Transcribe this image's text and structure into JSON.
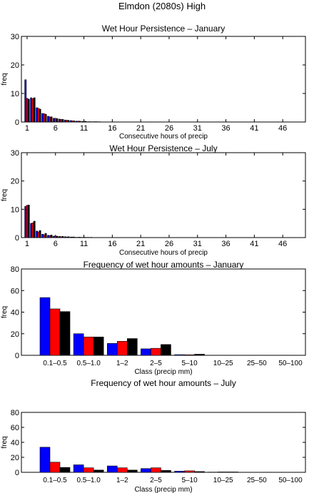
{
  "suptitle": "Elmdon (2080s) High",
  "colors": {
    "blue": "#0000ff",
    "red": "#ff0000",
    "black": "#000000"
  },
  "chart_data": [
    {
      "type": "bar",
      "title": "Wet Hour Persistence – January",
      "xlabel": "Consecutive hours of precip",
      "ylabel": "freq",
      "ylim": [
        0,
        30
      ],
      "yticks": [
        0,
        10,
        20,
        30
      ],
      "xticks": [
        1,
        6,
        11,
        16,
        21,
        26,
        31,
        36,
        41,
        46
      ],
      "xlim": [
        0,
        50
      ],
      "x": [
        1,
        2,
        3,
        4,
        5,
        6,
        7,
        8,
        9,
        10,
        11,
        12,
        13,
        14
      ],
      "series": [
        {
          "color": "#0000ff",
          "values": [
            14.8,
            8.5,
            5.0,
            3.0,
            2.0,
            1.3,
            1.0,
            0.7,
            0.5,
            0.3,
            0.2,
            0.1,
            0.1,
            0.1
          ]
        },
        {
          "color": "#ff0000",
          "values": [
            8.3,
            8.2,
            4.8,
            2.9,
            1.8,
            1.3,
            0.9,
            0.6,
            0.4,
            0.3,
            0.2,
            0.1,
            0.1,
            0.05
          ]
        },
        {
          "color": "#000000",
          "values": [
            8.0,
            8.5,
            4.5,
            2.7,
            1.8,
            1.2,
            0.9,
            0.6,
            0.4,
            0.3,
            0.25,
            0.1,
            0.1,
            0.05
          ]
        }
      ]
    },
    {
      "type": "bar",
      "title": "Wet Hour Persistence – July",
      "xlabel": "Consecutive hours of precip",
      "ylabel": "freq",
      "ylim": [
        0,
        30
      ],
      "yticks": [
        0,
        10,
        20,
        30
      ],
      "xticks": [
        1,
        6,
        11,
        16,
        21,
        26,
        31,
        36,
        41,
        46
      ],
      "xlim": [
        0,
        50
      ],
      "x": [
        1,
        2,
        3,
        4,
        5,
        6,
        7,
        8,
        9,
        10,
        11,
        12,
        13,
        14
      ],
      "series": [
        {
          "color": "#0000ff",
          "values": [
            11.0,
            5.0,
            2.3,
            1.2,
            0.8,
            0.5,
            0.4,
            0.3,
            0.2,
            0.1,
            0.1,
            0.1,
            0.05,
            0.05
          ]
        },
        {
          "color": "#ff0000",
          "values": [
            11.4,
            5.2,
            2.0,
            1.0,
            0.7,
            0.5,
            0.3,
            0.2,
            0.2,
            0.1,
            0.1,
            0.05,
            0.05,
            0.05
          ]
        },
        {
          "color": "#000000",
          "values": [
            11.5,
            5.8,
            2.5,
            1.5,
            0.9,
            0.5,
            0.4,
            0.3,
            0.2,
            0.15,
            0.1,
            0.1,
            0.05,
            0.05
          ]
        }
      ]
    },
    {
      "type": "bar",
      "title": "Frequency of wet hour amounts – January",
      "xlabel": "Class (precip mm)",
      "ylabel": "freq",
      "ylim": [
        0,
        80
      ],
      "yticks": [
        0,
        20,
        40,
        60,
        80
      ],
      "categories": [
        "0.1–0.5",
        "0.5–1.0",
        "1–2",
        "2–5",
        "5–10",
        "10–25",
        "25–50",
        "50–100"
      ],
      "series": [
        {
          "color": "#0000ff",
          "values": [
            53.5,
            20.0,
            11.0,
            6.0,
            0.6,
            0.0,
            0.0,
            0.0
          ]
        },
        {
          "color": "#ff0000",
          "values": [
            43.0,
            17.0,
            13.0,
            6.5,
            0.5,
            0.0,
            0.0,
            0.0
          ]
        },
        {
          "color": "#000000",
          "values": [
            40.5,
            17.0,
            15.5,
            10.0,
            1.0,
            0.0,
            0.0,
            0.0
          ]
        }
      ]
    },
    {
      "type": "bar",
      "title": "Frequency of wet hour amounts – July",
      "xlabel": "Class (precip mm)",
      "ylabel": "freq",
      "ylim": [
        0,
        80
      ],
      "yticks": [
        0,
        20,
        40,
        60,
        80
      ],
      "categories": [
        "0.1–0.5",
        "0.5–1.0",
        "1–2",
        "2–5",
        "5–10",
        "10–25",
        "25–50",
        "50–100"
      ],
      "series": [
        {
          "color": "#0000ff",
          "values": [
            33.5,
            10.0,
            8.5,
            5.0,
            1.5,
            0.3,
            0.0,
            0.0
          ]
        },
        {
          "color": "#ff0000",
          "values": [
            13.5,
            6.0,
            6.0,
            6.0,
            2.0,
            0.5,
            0.1,
            0.0
          ]
        },
        {
          "color": "#000000",
          "values": [
            6.5,
            3.0,
            3.0,
            2.5,
            1.0,
            0.5,
            0.2,
            0.0
          ]
        }
      ]
    }
  ]
}
